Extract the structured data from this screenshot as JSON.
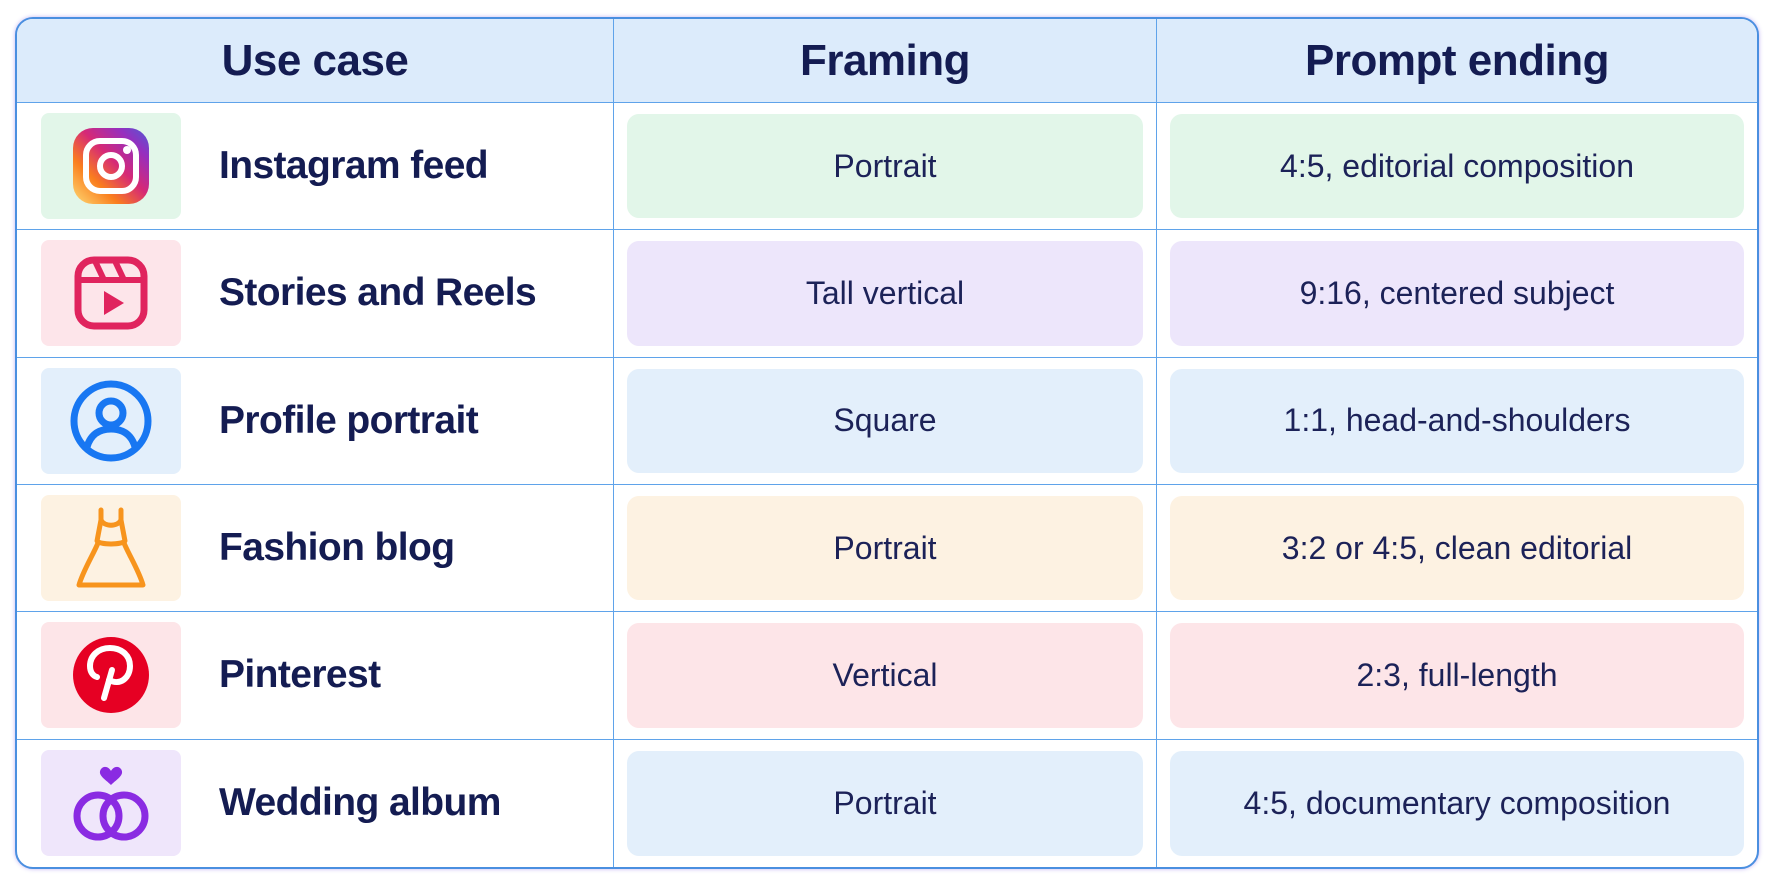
{
  "header": {
    "use_case": "Use case",
    "framing": "Framing",
    "prompt_ending": "Prompt ending"
  },
  "rows": [
    {
      "use_case": "Instagram feed",
      "icon": "instagram-icon",
      "framing": "Portrait",
      "prompt_ending": "4:5, editorial composition",
      "tint": "#e2f6e9",
      "icon_bg": "#e2f6e9"
    },
    {
      "use_case": "Stories and Reels",
      "icon": "reels-icon",
      "framing": "Tall vertical",
      "prompt_ending": "9:16, centered subject",
      "tint": "#ede6fb",
      "icon_bg": "#fde5ea"
    },
    {
      "use_case": "Profile portrait",
      "icon": "profile-icon",
      "framing": "Square",
      "prompt_ending": "1:1, head-and-shoulders",
      "tint": "#e3effb",
      "icon_bg": "#e3effb"
    },
    {
      "use_case": "Fashion blog",
      "icon": "dress-icon",
      "framing": "Portrait",
      "prompt_ending": "3:2 or 4:5, clean editorial",
      "tint": "#fdf2e2",
      "icon_bg": "#fdf2e2"
    },
    {
      "use_case": "Pinterest",
      "icon": "pinterest-icon",
      "framing": "Vertical",
      "prompt_ending": "2:3, full-length",
      "tint": "#fde5e8",
      "icon_bg": "#fde5e8"
    },
    {
      "use_case": "Wedding album",
      "icon": "rings-icon",
      "framing": "Portrait",
      "prompt_ending": "4:5, documentary composition",
      "tint": "#e3effb",
      "icon_bg": "#efe6fb"
    }
  ],
  "colors": {
    "header_bg": "#dcebfb",
    "border": "#4a8fe0",
    "text": "#141c52"
  }
}
